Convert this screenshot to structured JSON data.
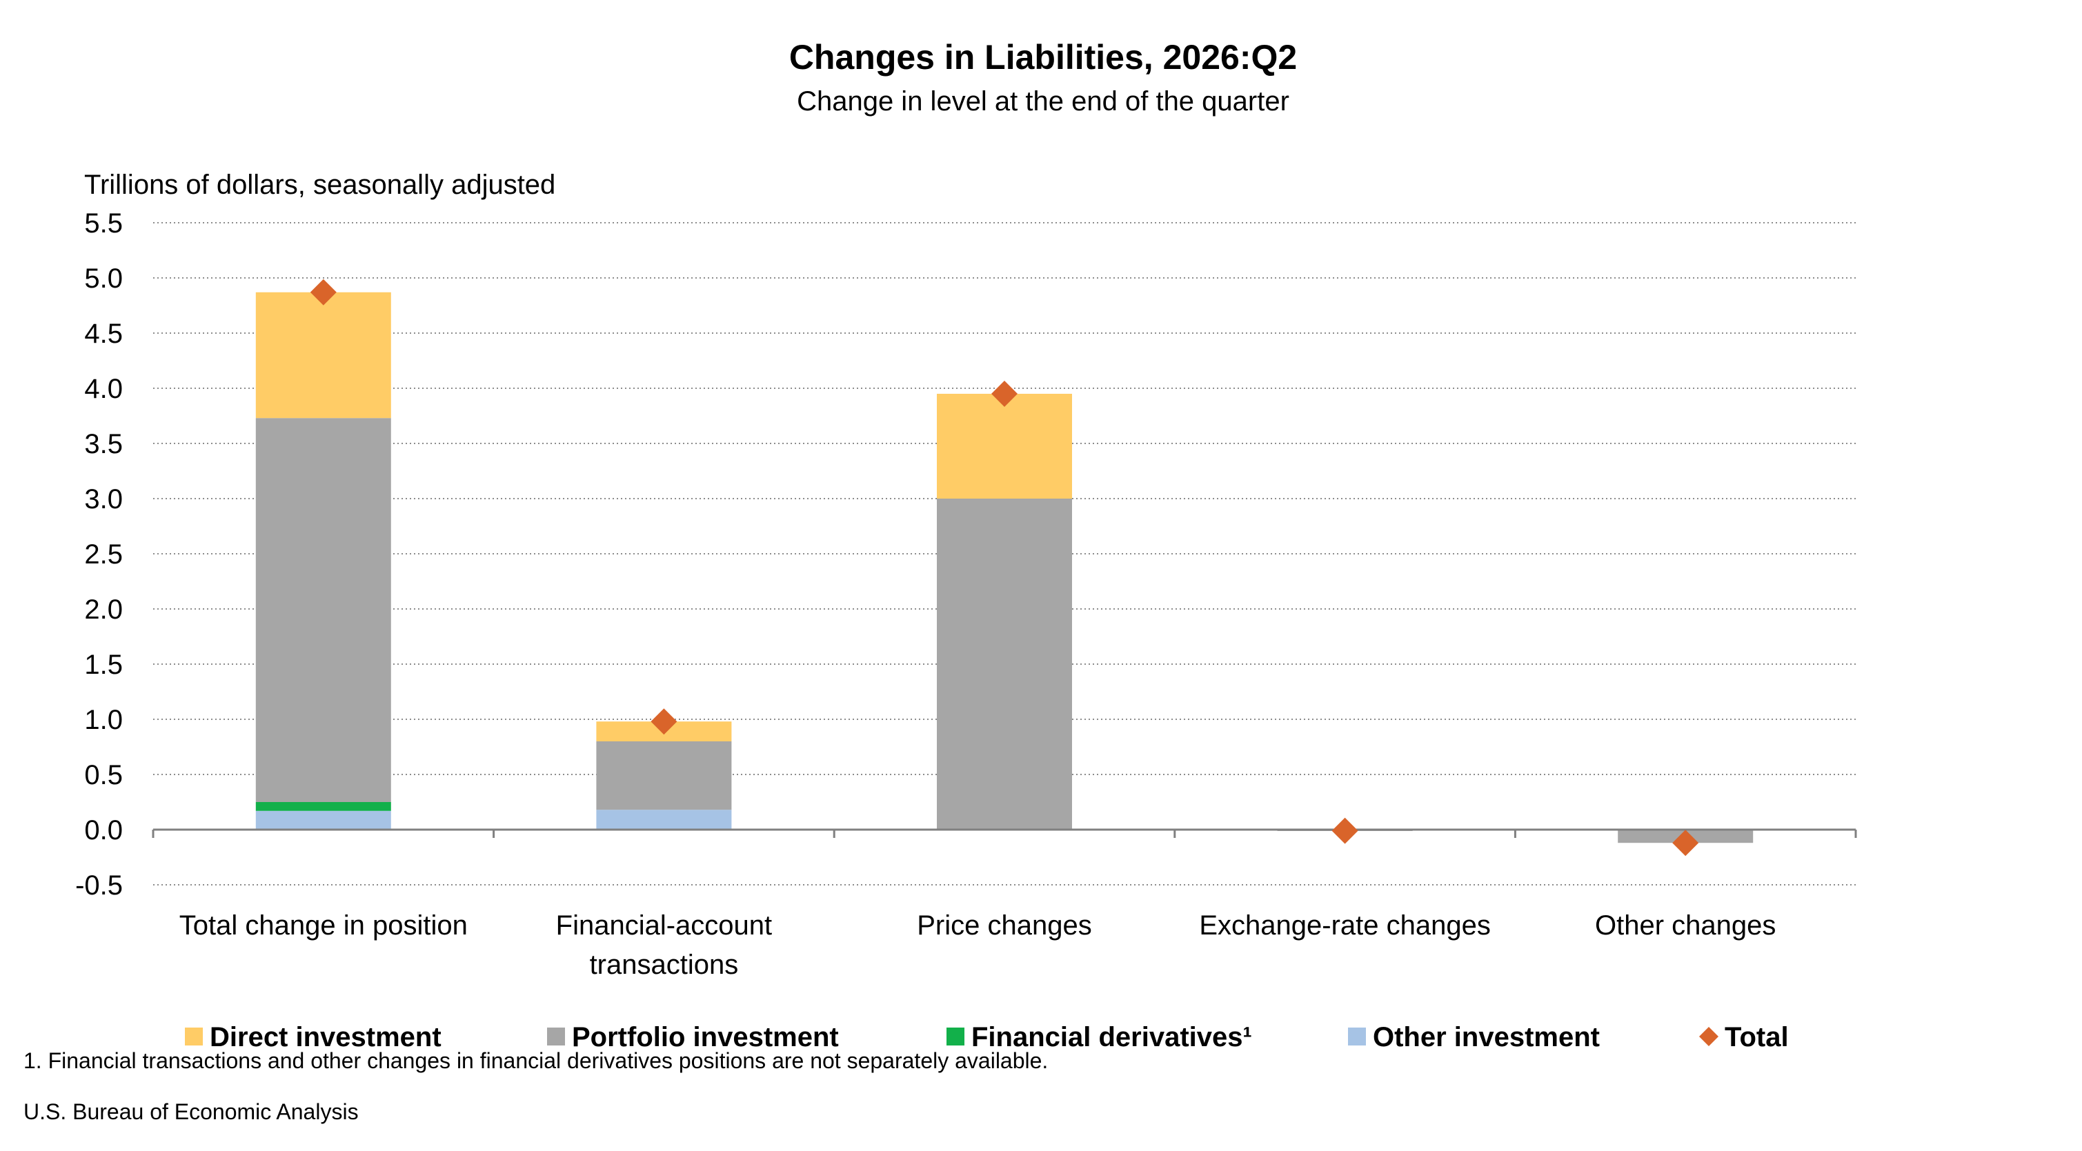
{
  "chart_data": {
    "type": "bar",
    "stacked": true,
    "title": "Changes in Liabilities, 2026:Q2",
    "subtitle": "Change in level at the end of the quarter",
    "ylabel": "Trillions of dollars, seasonally adjusted",
    "ylim": [
      -0.5,
      5.5
    ],
    "yticks": [
      "5.5",
      "5.0",
      "4.5",
      "4.0",
      "3.5",
      "3.0",
      "2.5",
      "2.0",
      "1.5",
      "1.0",
      "0.5",
      "0.0",
      "-0.5"
    ],
    "grid": true,
    "legend_position": "bottom",
    "categories": [
      [
        "Total change in position"
      ],
      [
        "Financial-account",
        "transactions"
      ],
      [
        "Price changes"
      ],
      [
        "Exchange-rate changes"
      ],
      [
        "Other changes"
      ]
    ],
    "series": [
      {
        "name": "Other investment",
        "color": "#A6C3E5",
        "values": [
          0.17,
          0.18,
          0.0,
          0.0,
          0.0
        ]
      },
      {
        "name": "Financial derivatives¹",
        "color": "#12B04A",
        "values": [
          0.08,
          0.0,
          0.0,
          0.0,
          0.0
        ]
      },
      {
        "name": "Portfolio investment",
        "color": "#A6A6A6",
        "values": [
          3.48,
          0.62,
          3.0,
          -0.01,
          -0.12
        ]
      },
      {
        "name": "Direct investment",
        "color": "#FFCC66",
        "values": [
          1.14,
          0.18,
          0.95,
          0.0,
          0.0
        ]
      }
    ],
    "total": {
      "name": "Total",
      "color": "#D9642A",
      "values": [
        4.87,
        0.98,
        3.95,
        -0.01,
        -0.12
      ]
    },
    "legend_order": [
      "Direct investment",
      "Portfolio investment",
      "Financial derivatives¹",
      "Other investment",
      "Total"
    ]
  },
  "footnote": "1. Financial transactions and other changes in financial derivatives positions are not separately available.",
  "source": "U.S. Bureau of Economic Analysis"
}
